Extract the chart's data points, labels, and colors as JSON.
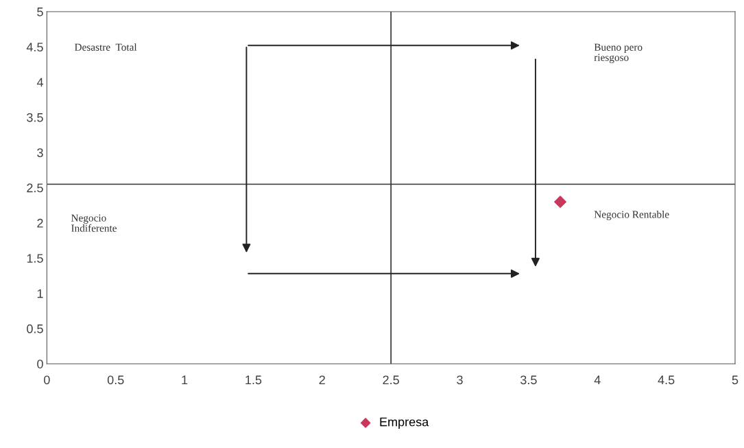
{
  "chart_data": {
    "type": "scatter",
    "series": [
      {
        "name": "Empresa",
        "color": "#c8385a",
        "x": [
          3.73
        ],
        "values": [
          2.3
        ]
      }
    ],
    "marker": "diamond",
    "xlim": [
      0,
      5
    ],
    "xticks": [
      0,
      0.5,
      1,
      1.5,
      2,
      2.5,
      3,
      3.5,
      4,
      4.5,
      5
    ],
    "ylim": [
      0,
      5
    ],
    "yticks": [
      0,
      0.5,
      1,
      1.5,
      2,
      2.5,
      3,
      3.5,
      4,
      4.5,
      5
    ],
    "ref_lines": [
      {
        "axis": "x",
        "value": 2.5,
        "color": "#333333"
      },
      {
        "axis": "y",
        "value": 2.55,
        "color": "#333333"
      }
    ],
    "annotations": [
      "Desastre  Total",
      "Bueno pero\nriesgoso",
      "Negocio\nIndiferente",
      "Negocio Rentable"
    ],
    "legend": "bottom",
    "grid": false
  }
}
